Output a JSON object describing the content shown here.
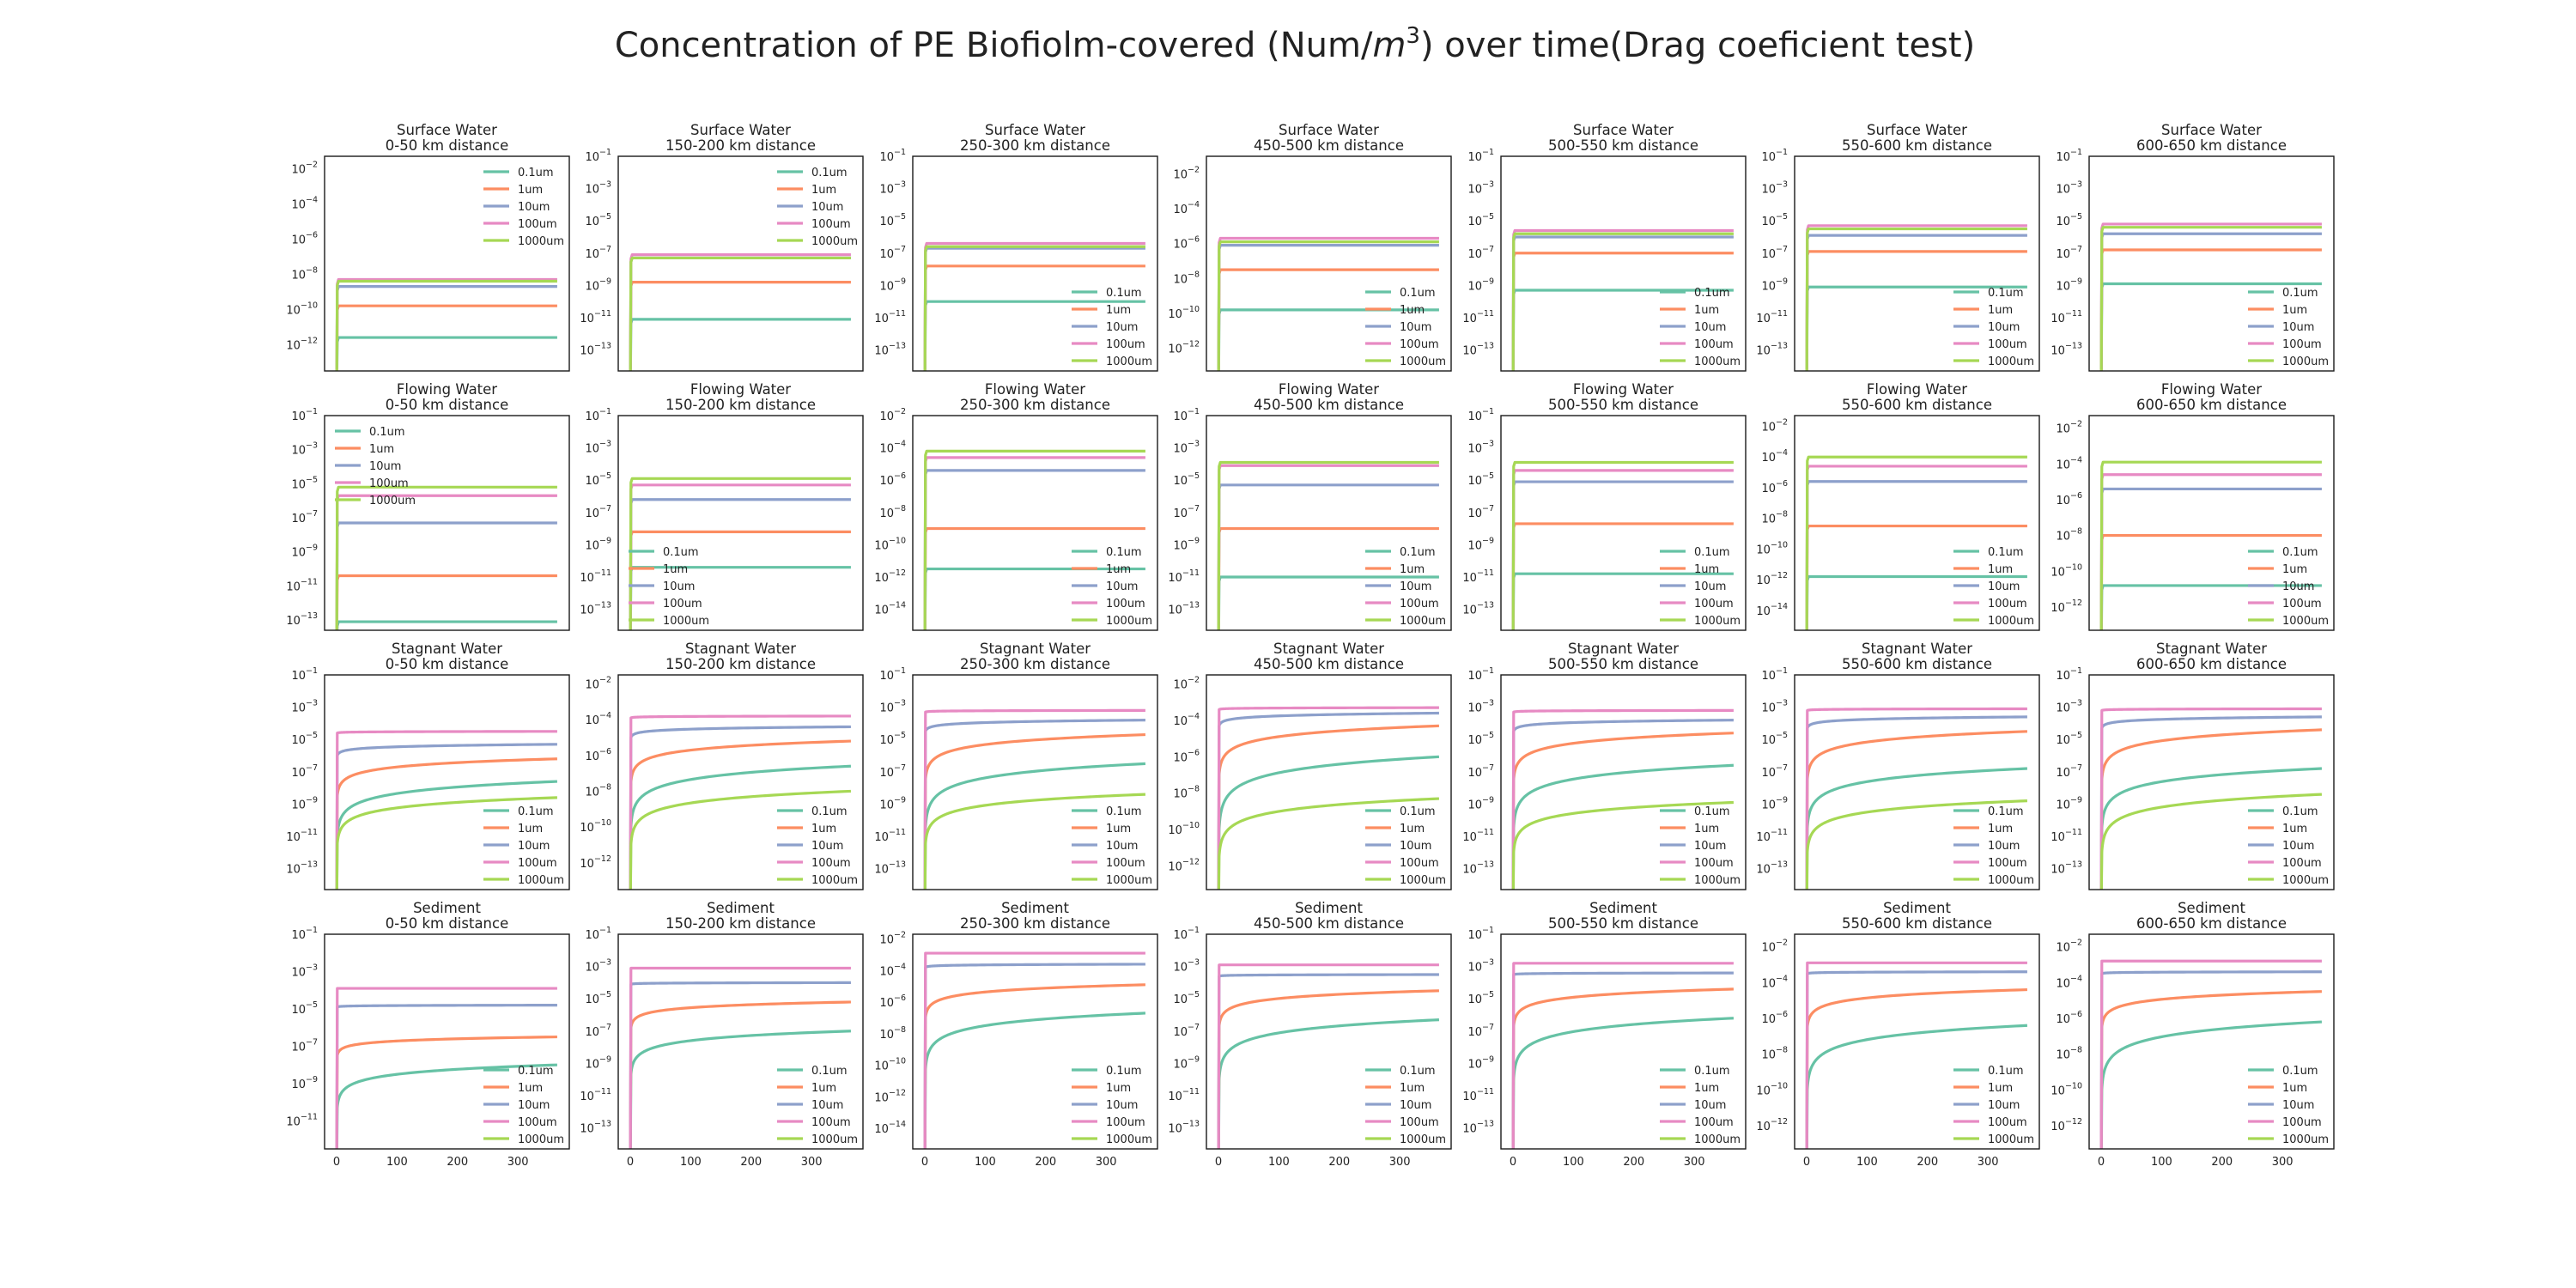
{
  "title": {
    "prefix": "Concentration of PE Biofiolm-covered (Num/",
    "unit_base": "m",
    "unit_exp": "3",
    "suffix": ") over time(Drag coeficient test)"
  },
  "colors": {
    "0.1um": "#66c2a5",
    "1um": "#fc8d62",
    "10um": "#8da0cb",
    "100um": "#e78ac3",
    "1000um": "#a6d854"
  },
  "chart_data": {
    "type": "line",
    "layout": "grid of 4 rows x 7 columns, shared x-axis per column",
    "y_scale": "log",
    "grid": false,
    "series_names": [
      "0.1um",
      "1um",
      "10um",
      "100um",
      "1000um"
    ],
    "x_ticks": [
      0,
      100,
      200,
      300
    ],
    "xlim": [
      -20,
      385
    ],
    "x_domain": [
      0,
      365
    ],
    "panels": [
      {
        "compartment": "Surface Water",
        "distance": "0-50 km distance",
        "ylim_exp": [
          -13.5,
          -1.3
        ],
        "yticks_exp": [
          -12,
          -10,
          -8,
          -6,
          -4,
          -2
        ],
        "legend": "upper right",
        "plateau_exp": [
          -11.6,
          -9.8,
          -8.7,
          -8.3,
          -8.4
        ],
        "curve": "fast"
      },
      {
        "compartment": "Surface Water",
        "distance": "150-200 km distance",
        "ylim_exp": [
          -14.3,
          -1.0
        ],
        "yticks_exp": [
          -13,
          -11,
          -9,
          -7,
          -5,
          -3,
          -1
        ],
        "legend": "upper right",
        "plateau_exp": [
          -11.1,
          -8.8,
          -7.3,
          -7.1,
          -7.3
        ],
        "curve": "fast"
      },
      {
        "compartment": "Surface Water",
        "distance": "250-300 km distance",
        "ylim_exp": [
          -14.3,
          -1.0
        ],
        "yticks_exp": [
          -13,
          -11,
          -9,
          -7,
          -5,
          -3,
          -1
        ],
        "legend": "lower right",
        "plateau_exp": [
          -10.0,
          -7.8,
          -6.7,
          -6.4,
          -6.6
        ],
        "curve": "fast"
      },
      {
        "compartment": "Surface Water",
        "distance": "450-500 km distance",
        "ylim_exp": [
          -13.3,
          -1.0
        ],
        "yticks_exp": [
          -12,
          -10,
          -8,
          -6,
          -4,
          -2
        ],
        "legend": "lower right",
        "plateau_exp": [
          -9.8,
          -7.5,
          -6.1,
          -5.7,
          -5.9
        ],
        "curve": "fast"
      },
      {
        "compartment": "Surface Water",
        "distance": "500-550 km distance",
        "ylim_exp": [
          -14.3,
          -1.0
        ],
        "yticks_exp": [
          -13,
          -11,
          -9,
          -7,
          -5,
          -3,
          -1
        ],
        "legend": "lower right",
        "plateau_exp": [
          -9.3,
          -7.0,
          -6.0,
          -5.6,
          -5.8
        ],
        "curve": "fast"
      },
      {
        "compartment": "Surface Water",
        "distance": "550-600 km distance",
        "ylim_exp": [
          -14.3,
          -1.0
        ],
        "yticks_exp": [
          -13,
          -11,
          -9,
          -7,
          -5,
          -3,
          -1
        ],
        "legend": "lower right",
        "plateau_exp": [
          -9.1,
          -6.9,
          -5.9,
          -5.3,
          -5.5
        ],
        "curve": "fast"
      },
      {
        "compartment": "Surface Water",
        "distance": "600-650 km distance",
        "ylim_exp": [
          -14.3,
          -1.0
        ],
        "yticks_exp": [
          -13,
          -11,
          -9,
          -7,
          -5,
          -3,
          -1
        ],
        "legend": "lower right",
        "plateau_exp": [
          -8.9,
          -6.8,
          -5.8,
          -5.2,
          -5.4
        ],
        "curve": "fast"
      },
      {
        "compartment": "Flowing Water",
        "distance": "0-50 km distance",
        "ylim_exp": [
          -13.6,
          -1.0
        ],
        "yticks_exp": [
          -13,
          -11,
          -9,
          -7,
          -5,
          -3,
          -1
        ],
        "legend": "upper left",
        "plateau_exp": [
          -13.1,
          -10.4,
          -7.3,
          -5.7,
          -5.2
        ],
        "curve": "fast"
      },
      {
        "compartment": "Flowing Water",
        "distance": "150-200 km distance",
        "ylim_exp": [
          -14.3,
          -1.0
        ],
        "yticks_exp": [
          -13,
          -11,
          -9,
          -7,
          -5,
          -3,
          -1
        ],
        "legend": "lower left",
        "plateau_exp": [
          -10.4,
          -8.2,
          -6.2,
          -5.3,
          -4.9
        ],
        "curve": "fast"
      },
      {
        "compartment": "Flowing Water",
        "distance": "250-300 km distance",
        "ylim_exp": [
          -15.3,
          -2.0
        ],
        "yticks_exp": [
          -14,
          -12,
          -10,
          -8,
          -6,
          -4,
          -2
        ],
        "legend": "lower right",
        "plateau_exp": [
          -11.5,
          -9.0,
          -5.4,
          -4.6,
          -4.2
        ],
        "curve": "fast"
      },
      {
        "compartment": "Flowing Water",
        "distance": "450-500 km distance",
        "ylim_exp": [
          -14.3,
          -1.0
        ],
        "yticks_exp": [
          -13,
          -11,
          -9,
          -7,
          -5,
          -3,
          -1
        ],
        "legend": "lower right",
        "plateau_exp": [
          -11.0,
          -8.0,
          -5.3,
          -4.1,
          -3.9
        ],
        "curve": "fast"
      },
      {
        "compartment": "Flowing Water",
        "distance": "500-550 km distance",
        "ylim_exp": [
          -14.3,
          -1.0
        ],
        "yticks_exp": [
          -13,
          -11,
          -9,
          -7,
          -5,
          -3,
          -1
        ],
        "legend": "lower right",
        "plateau_exp": [
          -10.8,
          -7.7,
          -5.1,
          -4.4,
          -3.9
        ],
        "curve": "fast"
      },
      {
        "compartment": "Flowing Water",
        "distance": "550-600 km distance",
        "ylim_exp": [
          -15.3,
          -1.3
        ],
        "yticks_exp": [
          -14,
          -12,
          -10,
          -8,
          -6,
          -4,
          -2
        ],
        "legend": "lower right",
        "plateau_exp": [
          -11.8,
          -8.5,
          -5.6,
          -4.6,
          -4.0
        ],
        "curve": "fast"
      },
      {
        "compartment": "Flowing Water",
        "distance": "600-650 km distance",
        "ylim_exp": [
          -13.3,
          -1.3
        ],
        "yticks_exp": [
          -12,
          -10,
          -8,
          -6,
          -4,
          -2
        ],
        "legend": "lower right",
        "plateau_exp": [
          -10.8,
          -8.0,
          -5.4,
          -4.6,
          -3.9
        ],
        "curve": "fast"
      },
      {
        "compartment": "Stagnant Water",
        "distance": "0-50 km distance",
        "ylim_exp": [
          -14.3,
          -1.0
        ],
        "yticks_exp": [
          -13,
          -11,
          -9,
          -7,
          -5,
          -3,
          -1
        ],
        "legend": "lower right",
        "plateau_exp": [
          -7.6,
          -6.2,
          -5.3,
          -4.5,
          -8.6
        ],
        "start_exp": [
          -11.0,
          -8.5,
          -6.0,
          -4.6,
          -11.5
        ],
        "curve": "slow"
      },
      {
        "compartment": "Stagnant Water",
        "distance": "150-200 km distance",
        "ylim_exp": [
          -13.5,
          -1.5
        ],
        "yticks_exp": [
          -12,
          -10,
          -8,
          -6,
          -4,
          -2
        ],
        "legend": "lower right",
        "plateau_exp": [
          -6.6,
          -5.2,
          -4.4,
          -3.8,
          -8.0
        ],
        "start_exp": [
          -10.0,
          -7.5,
          -5.0,
          -3.9,
          -11.0
        ],
        "curve": "slow"
      },
      {
        "compartment": "Stagnant Water",
        "distance": "250-300 km distance",
        "ylim_exp": [
          -14.3,
          -1.0
        ],
        "yticks_exp": [
          -13,
          -11,
          -9,
          -7,
          -5,
          -3,
          -1
        ],
        "legend": "lower right",
        "plateau_exp": [
          -6.5,
          -4.7,
          -3.8,
          -3.2,
          -8.4
        ],
        "start_exp": [
          -10.5,
          -7.5,
          -4.5,
          -3.3,
          -11.5
        ],
        "curve": "slow"
      },
      {
        "compartment": "Stagnant Water",
        "distance": "450-500 km distance",
        "ylim_exp": [
          -13.3,
          -1.5
        ],
        "yticks_exp": [
          -12,
          -10,
          -8,
          -6,
          -4,
          -2
        ],
        "legend": "lower right",
        "plateau_exp": [
          -6.0,
          -4.3,
          -3.6,
          -3.3,
          -8.3
        ],
        "start_exp": [
          -10.0,
          -7.0,
          -4.3,
          -3.4,
          -11.5
        ],
        "curve": "slow"
      },
      {
        "compartment": "Stagnant Water",
        "distance": "500-550 km distance",
        "ylim_exp": [
          -14.3,
          -1.0
        ],
        "yticks_exp": [
          -13,
          -11,
          -9,
          -7,
          -5,
          -3,
          -1
        ],
        "legend": "lower right",
        "plateau_exp": [
          -6.6,
          -4.6,
          -3.8,
          -3.2,
          -8.9
        ],
        "start_exp": [
          -10.5,
          -7.5,
          -4.5,
          -3.3,
          -12.0
        ],
        "curve": "slow"
      },
      {
        "compartment": "Stagnant Water",
        "distance": "550-600 km distance",
        "ylim_exp": [
          -14.3,
          -1.0
        ],
        "yticks_exp": [
          -13,
          -11,
          -9,
          -7,
          -5,
          -3,
          -1
        ],
        "legend": "lower right",
        "plateau_exp": [
          -6.8,
          -4.5,
          -3.6,
          -3.1,
          -8.8
        ],
        "start_exp": [
          -10.5,
          -7.5,
          -4.3,
          -3.2,
          -12.0
        ],
        "curve": "slow"
      },
      {
        "compartment": "Stagnant Water",
        "distance": "600-650 km distance",
        "ylim_exp": [
          -14.3,
          -1.0
        ],
        "yticks_exp": [
          -13,
          -11,
          -9,
          -7,
          -5,
          -3,
          -1
        ],
        "legend": "lower right",
        "plateau_exp": [
          -6.8,
          -4.4,
          -3.6,
          -3.1,
          -8.4
        ],
        "start_exp": [
          -10.5,
          -7.5,
          -4.3,
          -3.2,
          -12.0
        ],
        "curve": "slow"
      },
      {
        "compartment": "Sediment",
        "distance": "0-50 km distance",
        "ylim_exp": [
          -12.5,
          -1.0
        ],
        "yticks_exp": [
          -11,
          -9,
          -7,
          -5,
          -3,
          -1
        ],
        "legend": "lower right",
        "plateau_exp": [
          -8.0,
          -6.5,
          -4.8,
          -3.9,
          null
        ],
        "start_exp": [
          -10.3,
          -7.5,
          -4.9,
          -3.9,
          null
        ],
        "curve": "slow"
      },
      {
        "compartment": "Sediment",
        "distance": "150-200 km distance",
        "ylim_exp": [
          -14.3,
          -1.0
        ],
        "yticks_exp": [
          -13,
          -11,
          -9,
          -7,
          -5,
          -3,
          -1
        ],
        "legend": "lower right",
        "plateau_exp": [
          -7.0,
          -5.2,
          -4.0,
          -3.1,
          null
        ],
        "start_exp": [
          -9.7,
          -6.8,
          -4.1,
          -3.1,
          null
        ],
        "curve": "slow"
      },
      {
        "compartment": "Sediment",
        "distance": "250-300 km distance",
        "ylim_exp": [
          -15.3,
          -1.7
        ],
        "yticks_exp": [
          -14,
          -12,
          -10,
          -8,
          -6,
          -4,
          -2
        ],
        "legend": "lower right",
        "plateau_exp": [
          -6.7,
          -4.9,
          -3.6,
          -2.9,
          null
        ],
        "start_exp": [
          -10.3,
          -7.0,
          -3.8,
          -2.9,
          null
        ],
        "curve": "slow"
      },
      {
        "compartment": "Sediment",
        "distance": "450-500 km distance",
        "ylim_exp": [
          -14.3,
          -1.0
        ],
        "yticks_exp": [
          -13,
          -11,
          -9,
          -7,
          -5,
          -3,
          -1
        ],
        "legend": "lower right",
        "plateau_exp": [
          -6.3,
          -4.5,
          -3.5,
          -2.9,
          null
        ],
        "start_exp": [
          -10.0,
          -6.7,
          -3.6,
          -2.9,
          null
        ],
        "curve": "slow"
      },
      {
        "compartment": "Sediment",
        "distance": "500-550 km distance",
        "ylim_exp": [
          -14.3,
          -1.0
        ],
        "yticks_exp": [
          -13,
          -11,
          -9,
          -7,
          -5,
          -3,
          -1
        ],
        "legend": "lower right",
        "plateau_exp": [
          -6.2,
          -4.4,
          -3.4,
          -2.8,
          null
        ],
        "start_exp": [
          -10.0,
          -6.7,
          -3.5,
          -2.8,
          null
        ],
        "curve": "slow"
      },
      {
        "compartment": "Sediment",
        "distance": "550-600 km distance",
        "ylim_exp": [
          -13.3,
          -1.3
        ],
        "yticks_exp": [
          -12,
          -10,
          -8,
          -6,
          -4,
          -2
        ],
        "legend": "lower right",
        "plateau_exp": [
          -6.4,
          -4.4,
          -3.4,
          -2.9,
          null
        ],
        "start_exp": [
          -10.0,
          -6.5,
          -3.5,
          -2.9,
          null
        ],
        "curve": "slow"
      },
      {
        "compartment": "Sediment",
        "distance": "600-650 km distance",
        "ylim_exp": [
          -13.3,
          -1.3
        ],
        "yticks_exp": [
          -12,
          -10,
          -8,
          -6,
          -4,
          -2
        ],
        "legend": "lower right",
        "plateau_exp": [
          -6.2,
          -4.5,
          -3.4,
          -2.8,
          null
        ],
        "start_exp": [
          -10.0,
          -6.5,
          -3.5,
          -2.8,
          null
        ],
        "curve": "slow"
      }
    ]
  }
}
